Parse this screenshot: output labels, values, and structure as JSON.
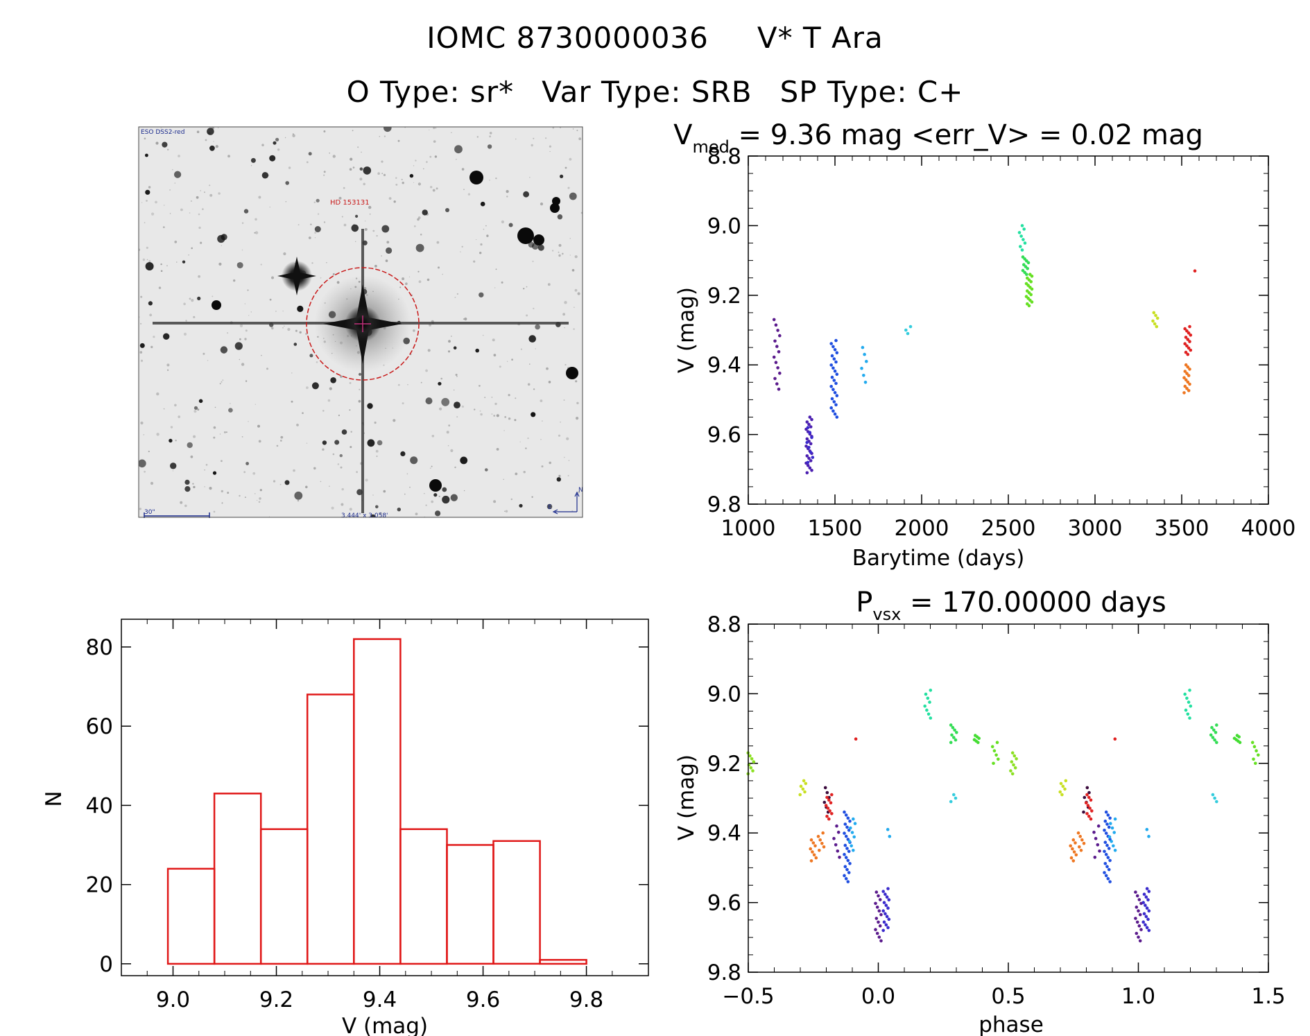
{
  "header": {
    "object_id": "IOMC 8730000036",
    "star_name": "V* T Ara",
    "otype": "O Type: sr*",
    "vartype": "Var Type: SRB",
    "sptype": "SP Type: C+"
  },
  "finder": {
    "survey_label": "ESO DSS2-red",
    "target_label": "HD 153131",
    "scale_label": "30\"",
    "fov_label": "3.444' x 3.058'",
    "north_label": "N",
    "east_label": "E"
  },
  "chart_data": [
    {
      "id": "lightcurve",
      "type": "scatter",
      "title_main": "V",
      "title_sub": "med",
      "title_rest": " = 9.36 mag <err_V> = 0.02 mag",
      "xlabel": "Barytime (days)",
      "ylabel": "V (mag)",
      "xlim": [
        1000,
        4000
      ],
      "ylim": [
        9.8,
        8.8
      ],
      "xticks": [
        "1000",
        "1500",
        "2000",
        "2500",
        "3000",
        "3500",
        "4000"
      ],
      "yticks": [
        "8.8",
        "9.0",
        "9.2",
        "9.4",
        "9.6",
        "9.8"
      ],
      "groups": [
        {
          "x": 1165,
          "color": "#5a1a8c",
          "ymin": 9.27,
          "ymax": 9.47,
          "n": 14
        },
        {
          "x": 1350,
          "color": "#4b1fb0",
          "ymin": 9.55,
          "ymax": 9.71,
          "n": 24
        },
        {
          "x": 1355,
          "color": "#3a2acc",
          "ymin": 9.58,
          "ymax": 9.68,
          "n": 8
        },
        {
          "x": 1495,
          "color": "#1f4ee0",
          "ymin": 9.33,
          "ymax": 9.55,
          "n": 26
        },
        {
          "x": 1665,
          "color": "#22aaee",
          "ymin": 9.35,
          "ymax": 9.45,
          "n": 6
        },
        {
          "x": 1920,
          "color": "#33ccdd",
          "ymin": 9.29,
          "ymax": 9.31,
          "n": 3
        },
        {
          "x": 2580,
          "color": "#22e0a0",
          "ymin": 9.0,
          "ymax": 9.07,
          "n": 8
        },
        {
          "x": 2600,
          "color": "#33dd55",
          "ymin": 9.09,
          "ymax": 9.14,
          "n": 10
        },
        {
          "x": 2620,
          "color": "#66e022",
          "ymin": 9.14,
          "ymax": 9.23,
          "n": 18
        },
        {
          "x": 3350,
          "color": "#c8e022",
          "ymin": 9.25,
          "ymax": 9.29,
          "n": 6
        },
        {
          "x": 3535,
          "color": "#e02222",
          "ymin": 9.29,
          "ymax": 9.37,
          "n": 14
        },
        {
          "x": 3530,
          "color": "#ee7722",
          "ymin": 9.4,
          "ymax": 9.48,
          "n": 14
        },
        {
          "x": 3560,
          "color": "#e02222",
          "ymin": 9.13,
          "ymax": 9.13,
          "n": 1
        }
      ]
    },
    {
      "id": "phased",
      "type": "scatter",
      "title_main": "P",
      "title_sub": "vsx",
      "title_rest": " = 170.00000 days",
      "xlabel": "phase",
      "ylabel": "V (mag)",
      "xlim": [
        -0.5,
        1.5
      ],
      "ylim": [
        9.8,
        8.8
      ],
      "xticks": [
        "−0.5",
        "0.0",
        "0.5",
        "1.0",
        "1.5"
      ],
      "yticks": [
        "8.8",
        "9.0",
        "9.2",
        "9.4",
        "9.6",
        "9.8"
      ],
      "groups": [
        {
          "x": -0.49,
          "color": "#8ce022",
          "ymin": 9.17,
          "ymax": 9.23,
          "n": 8
        },
        {
          "x": -0.29,
          "color": "#c8e022",
          "ymin": 9.25,
          "ymax": 9.29,
          "n": 6
        },
        {
          "x": -0.25,
          "color": "#ee7722",
          "ymin": 9.42,
          "ymax": 9.48,
          "n": 8
        },
        {
          "x": -0.22,
          "color": "#ee7722",
          "ymin": 9.4,
          "ymax": 9.45,
          "n": 6
        },
        {
          "x": -0.2,
          "color": "#3a0a3c",
          "ymin": 9.27,
          "ymax": 9.34,
          "n": 6
        },
        {
          "x": -0.19,
          "color": "#e02222",
          "ymin": 9.29,
          "ymax": 9.36,
          "n": 10
        },
        {
          "x": -0.16,
          "color": "#5a1a8c",
          "ymin": 9.38,
          "ymax": 9.47,
          "n": 6
        },
        {
          "x": -0.12,
          "color": "#1f4ee0",
          "ymin": 9.34,
          "ymax": 9.54,
          "n": 24
        },
        {
          "x": -0.1,
          "color": "#22aaee",
          "ymin": 9.36,
          "ymax": 9.45,
          "n": 8
        },
        {
          "x": 0.0,
          "color": "#5a1a8c",
          "ymin": 9.57,
          "ymax": 9.71,
          "n": 14
        },
        {
          "x": 0.03,
          "color": "#3a2acc",
          "ymin": 9.56,
          "ymax": 9.68,
          "n": 16
        },
        {
          "x": 0.04,
          "color": "#22aaee",
          "ymin": 9.39,
          "ymax": 9.41,
          "n": 2
        },
        {
          "x": 0.19,
          "color": "#22e0a0",
          "ymin": 8.99,
          "ymax": 9.07,
          "n": 8
        },
        {
          "x": 0.29,
          "color": "#33ccdd",
          "ymin": 9.29,
          "ymax": 9.31,
          "n": 3
        },
        {
          "x": 0.29,
          "color": "#33dd55",
          "ymin": 9.09,
          "ymax": 9.14,
          "n": 8
        },
        {
          "x": -0.09,
          "color": "#e02222",
          "ymin": 9.13,
          "ymax": 9.13,
          "n": 1
        },
        {
          "x": 0.38,
          "color": "#44dd33",
          "ymin": 9.12,
          "ymax": 9.14,
          "n": 6
        },
        {
          "x": 0.45,
          "color": "#66e022",
          "ymin": 9.14,
          "ymax": 9.2,
          "n": 6
        },
        {
          "x": 0.52,
          "color": "#8ce022",
          "ymin": 9.17,
          "ymax": 9.23,
          "n": 8
        },
        {
          "x": 0.71,
          "color": "#c8e022",
          "ymin": 9.25,
          "ymax": 9.29,
          "n": 6
        },
        {
          "x": 0.75,
          "color": "#ee7722",
          "ymin": 9.42,
          "ymax": 9.48,
          "n": 8
        },
        {
          "x": 0.78,
          "color": "#ee7722",
          "ymin": 9.4,
          "ymax": 9.45,
          "n": 6
        },
        {
          "x": 0.8,
          "color": "#3a0a3c",
          "ymin": 9.27,
          "ymax": 9.34,
          "n": 6
        },
        {
          "x": 0.81,
          "color": "#e02222",
          "ymin": 9.29,
          "ymax": 9.36,
          "n": 10
        },
        {
          "x": 0.84,
          "color": "#5a1a8c",
          "ymin": 9.38,
          "ymax": 9.47,
          "n": 6
        },
        {
          "x": 0.88,
          "color": "#1f4ee0",
          "ymin": 9.34,
          "ymax": 9.54,
          "n": 24
        },
        {
          "x": 0.9,
          "color": "#22aaee",
          "ymin": 9.36,
          "ymax": 9.45,
          "n": 8
        },
        {
          "x": 0.91,
          "color": "#e02222",
          "ymin": 9.13,
          "ymax": 9.13,
          "n": 1
        },
        {
          "x": 1.0,
          "color": "#5a1a8c",
          "ymin": 9.57,
          "ymax": 9.71,
          "n": 14
        },
        {
          "x": 1.03,
          "color": "#3a2acc",
          "ymin": 9.56,
          "ymax": 9.68,
          "n": 16
        },
        {
          "x": 1.04,
          "color": "#22aaee",
          "ymin": 9.39,
          "ymax": 9.41,
          "n": 2
        },
        {
          "x": 1.19,
          "color": "#22e0a0",
          "ymin": 8.99,
          "ymax": 9.07,
          "n": 8
        },
        {
          "x": 1.29,
          "color": "#33ccdd",
          "ymin": 9.29,
          "ymax": 9.31,
          "n": 3
        },
        {
          "x": 1.29,
          "color": "#33dd55",
          "ymin": 9.09,
          "ymax": 9.14,
          "n": 8
        },
        {
          "x": 1.38,
          "color": "#44dd33",
          "ymin": 9.12,
          "ymax": 9.14,
          "n": 6
        },
        {
          "x": 1.45,
          "color": "#66e022",
          "ymin": 9.14,
          "ymax": 9.2,
          "n": 6
        }
      ]
    },
    {
      "id": "histogram",
      "type": "bar",
      "xlabel": "V (mag)",
      "ylabel": "N",
      "xlim": [
        8.9,
        9.92
      ],
      "ylim": [
        -3,
        87
      ],
      "xticks": [
        "9.0",
        "9.2",
        "9.4",
        "9.6",
        "9.8"
      ],
      "yticks": [
        "0",
        "20",
        "40",
        "60",
        "80"
      ],
      "bar_color": "#e01818",
      "bins": [
        {
          "x0": 8.99,
          "x1": 9.08,
          "count": 24
        },
        {
          "x0": 9.08,
          "x1": 9.17,
          "count": 43
        },
        {
          "x0": 9.17,
          "x1": 9.26,
          "count": 34
        },
        {
          "x0": 9.26,
          "x1": 9.35,
          "count": 68
        },
        {
          "x0": 9.35,
          "x1": 9.44,
          "count": 82
        },
        {
          "x0": 9.44,
          "x1": 9.53,
          "count": 34
        },
        {
          "x0": 9.53,
          "x1": 9.62,
          "count": 30
        },
        {
          "x0": 9.62,
          "x1": 9.71,
          "count": 31
        },
        {
          "x0": 9.71,
          "x1": 9.8,
          "count": 1
        }
      ]
    }
  ]
}
